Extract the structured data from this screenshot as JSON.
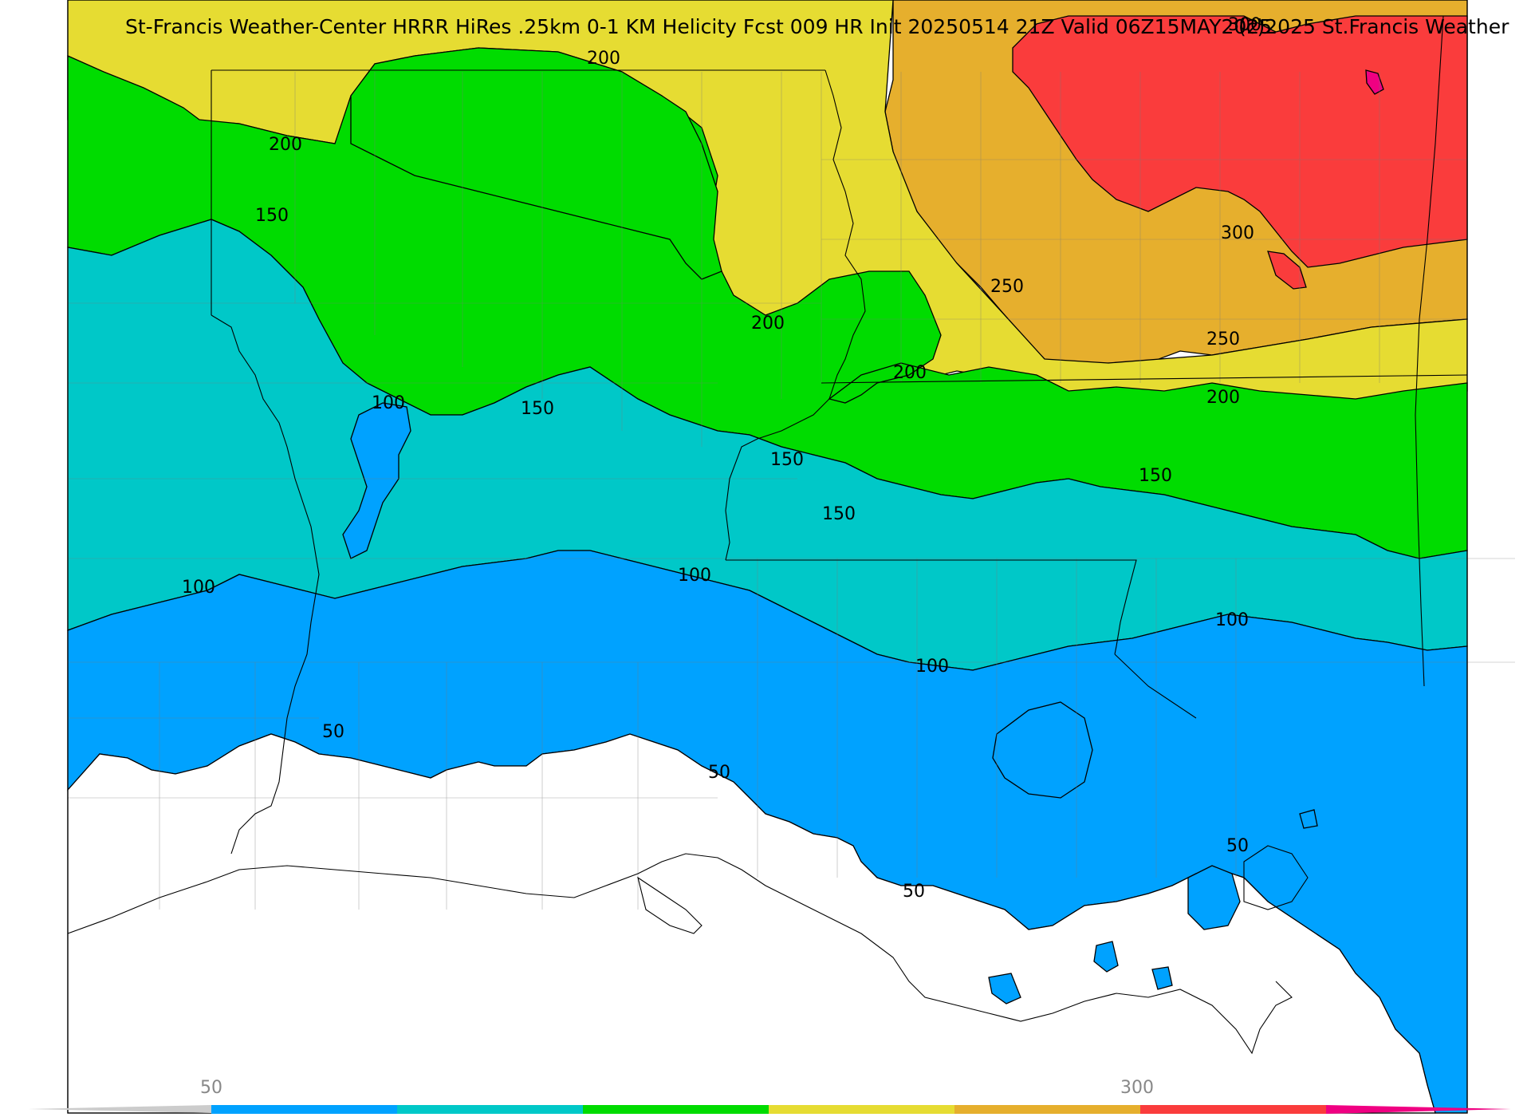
{
  "title": "St-Francis Weather-Center HRRR HiRes .25km 0-1 KM Helicity Fcst 009 HR Init 20250514 21Z  Valid 06Z15MAY2025",
  "credit": "(c)2025 St.Francis Weather",
  "contour_levels": {
    "l50": "50",
    "l100": "100",
    "l150": "150",
    "l200": "200",
    "l250": "250",
    "l300": "300"
  },
  "colorbar": {
    "tick_labels": [
      "50",
      "300"
    ],
    "colors": [
      "#cccccc",
      "#00a2ff",
      "#00c8c8",
      "#00dc00",
      "#e6dc32",
      "#e6af2d",
      "#fa3c3c",
      "#f00082"
    ]
  },
  "fill_colors": {
    "below_50": "#ffffff",
    "50_100": "#00a2ff",
    "100_150": "#00c8c8",
    "150_200": "#00dc00",
    "200_250": "#e6dc32",
    "250_300": "#e6af2d",
    "300_350": "#fa3c3c",
    "above_350": "#f00082"
  }
}
